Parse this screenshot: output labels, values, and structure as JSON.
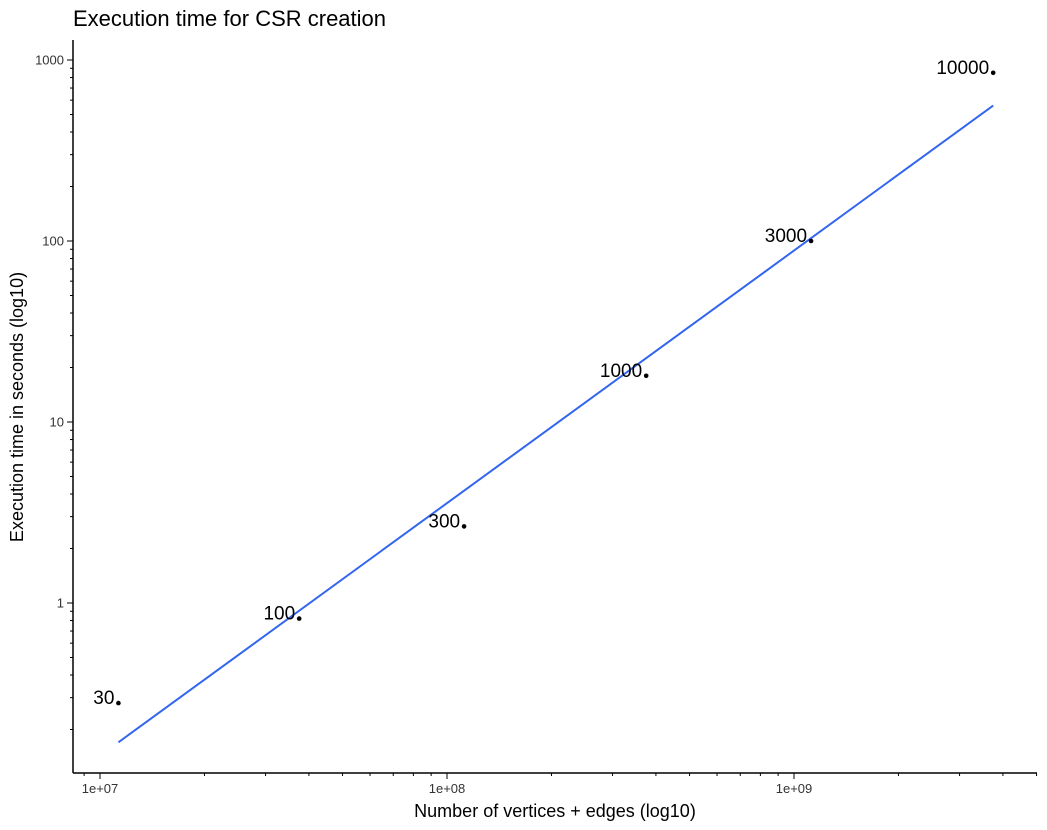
{
  "chart_data": {
    "type": "scatter",
    "title": "Execution time for CSR creation",
    "xlabel": "Number of vertices + edges (log10)",
    "ylabel": "Execution time in seconds (log10)",
    "xscale": "log10",
    "yscale": "log10",
    "xlim": [
      8500000,
      5000000000
    ],
    "ylim": [
      0.12,
      1300
    ],
    "grid": false,
    "x_ticks": [
      {
        "value": 10000000,
        "label": "1e+07"
      },
      {
        "value": 100000000,
        "label": "1e+08"
      },
      {
        "value": 1000000000,
        "label": "1e+09"
      }
    ],
    "y_ticks": [
      {
        "value": 1,
        "label": "1"
      },
      {
        "value": 10,
        "label": "10"
      },
      {
        "value": 100,
        "label": "100"
      },
      {
        "value": 1000,
        "label": "1000"
      }
    ],
    "points": [
      {
        "label": "30",
        "x": 11300000,
        "y": 0.28
      },
      {
        "label": "100",
        "x": 37500000,
        "y": 0.82
      },
      {
        "label": "300",
        "x": 112000000,
        "y": 2.65
      },
      {
        "label": "1000",
        "x": 375000000,
        "y": 18
      },
      {
        "label": "3000",
        "x": 1120000000,
        "y": 100
      },
      {
        "label": "10000",
        "x": 3750000000,
        "y": 850
      }
    ],
    "fit_line": {
      "x": [
        11300000,
        3750000000
      ],
      "y": [
        0.17,
        560
      ],
      "color": "#3366ee"
    },
    "point_color": "#000000"
  }
}
